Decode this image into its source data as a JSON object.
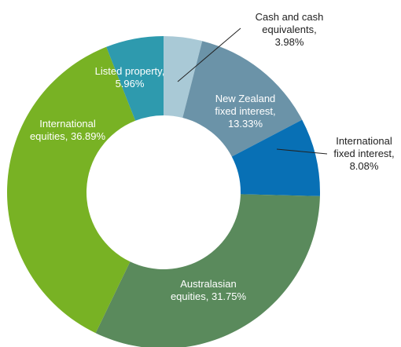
{
  "chart_data": {
    "type": "pie",
    "variant": "donut",
    "slices": [
      {
        "label_lines": [
          "Cash and cash",
          "equivalents,",
          "3.98%"
        ],
        "value": 3.98,
        "color": "#a9c9d6"
      },
      {
        "label_lines": [
          "New Zealand",
          "fixed interest,",
          "13.33%"
        ],
        "value": 13.33,
        "color": "#6b93a8"
      },
      {
        "label_lines": [
          "International",
          "fixed interest,",
          "8.08%"
        ],
        "value": 8.08,
        "color": "#0870b5"
      },
      {
        "label_lines": [
          "Australasian",
          "equities, 31.75%"
        ],
        "value": 31.75,
        "color": "#5a8a5c"
      },
      {
        "label_lines": [
          "International",
          "equities, 36.89%"
        ],
        "value": 36.89,
        "color": "#78b224"
      },
      {
        "label_lines": [
          "Listed property,",
          "5.96%"
        ],
        "value": 5.96,
        "color": "#2e9aae"
      }
    ]
  }
}
